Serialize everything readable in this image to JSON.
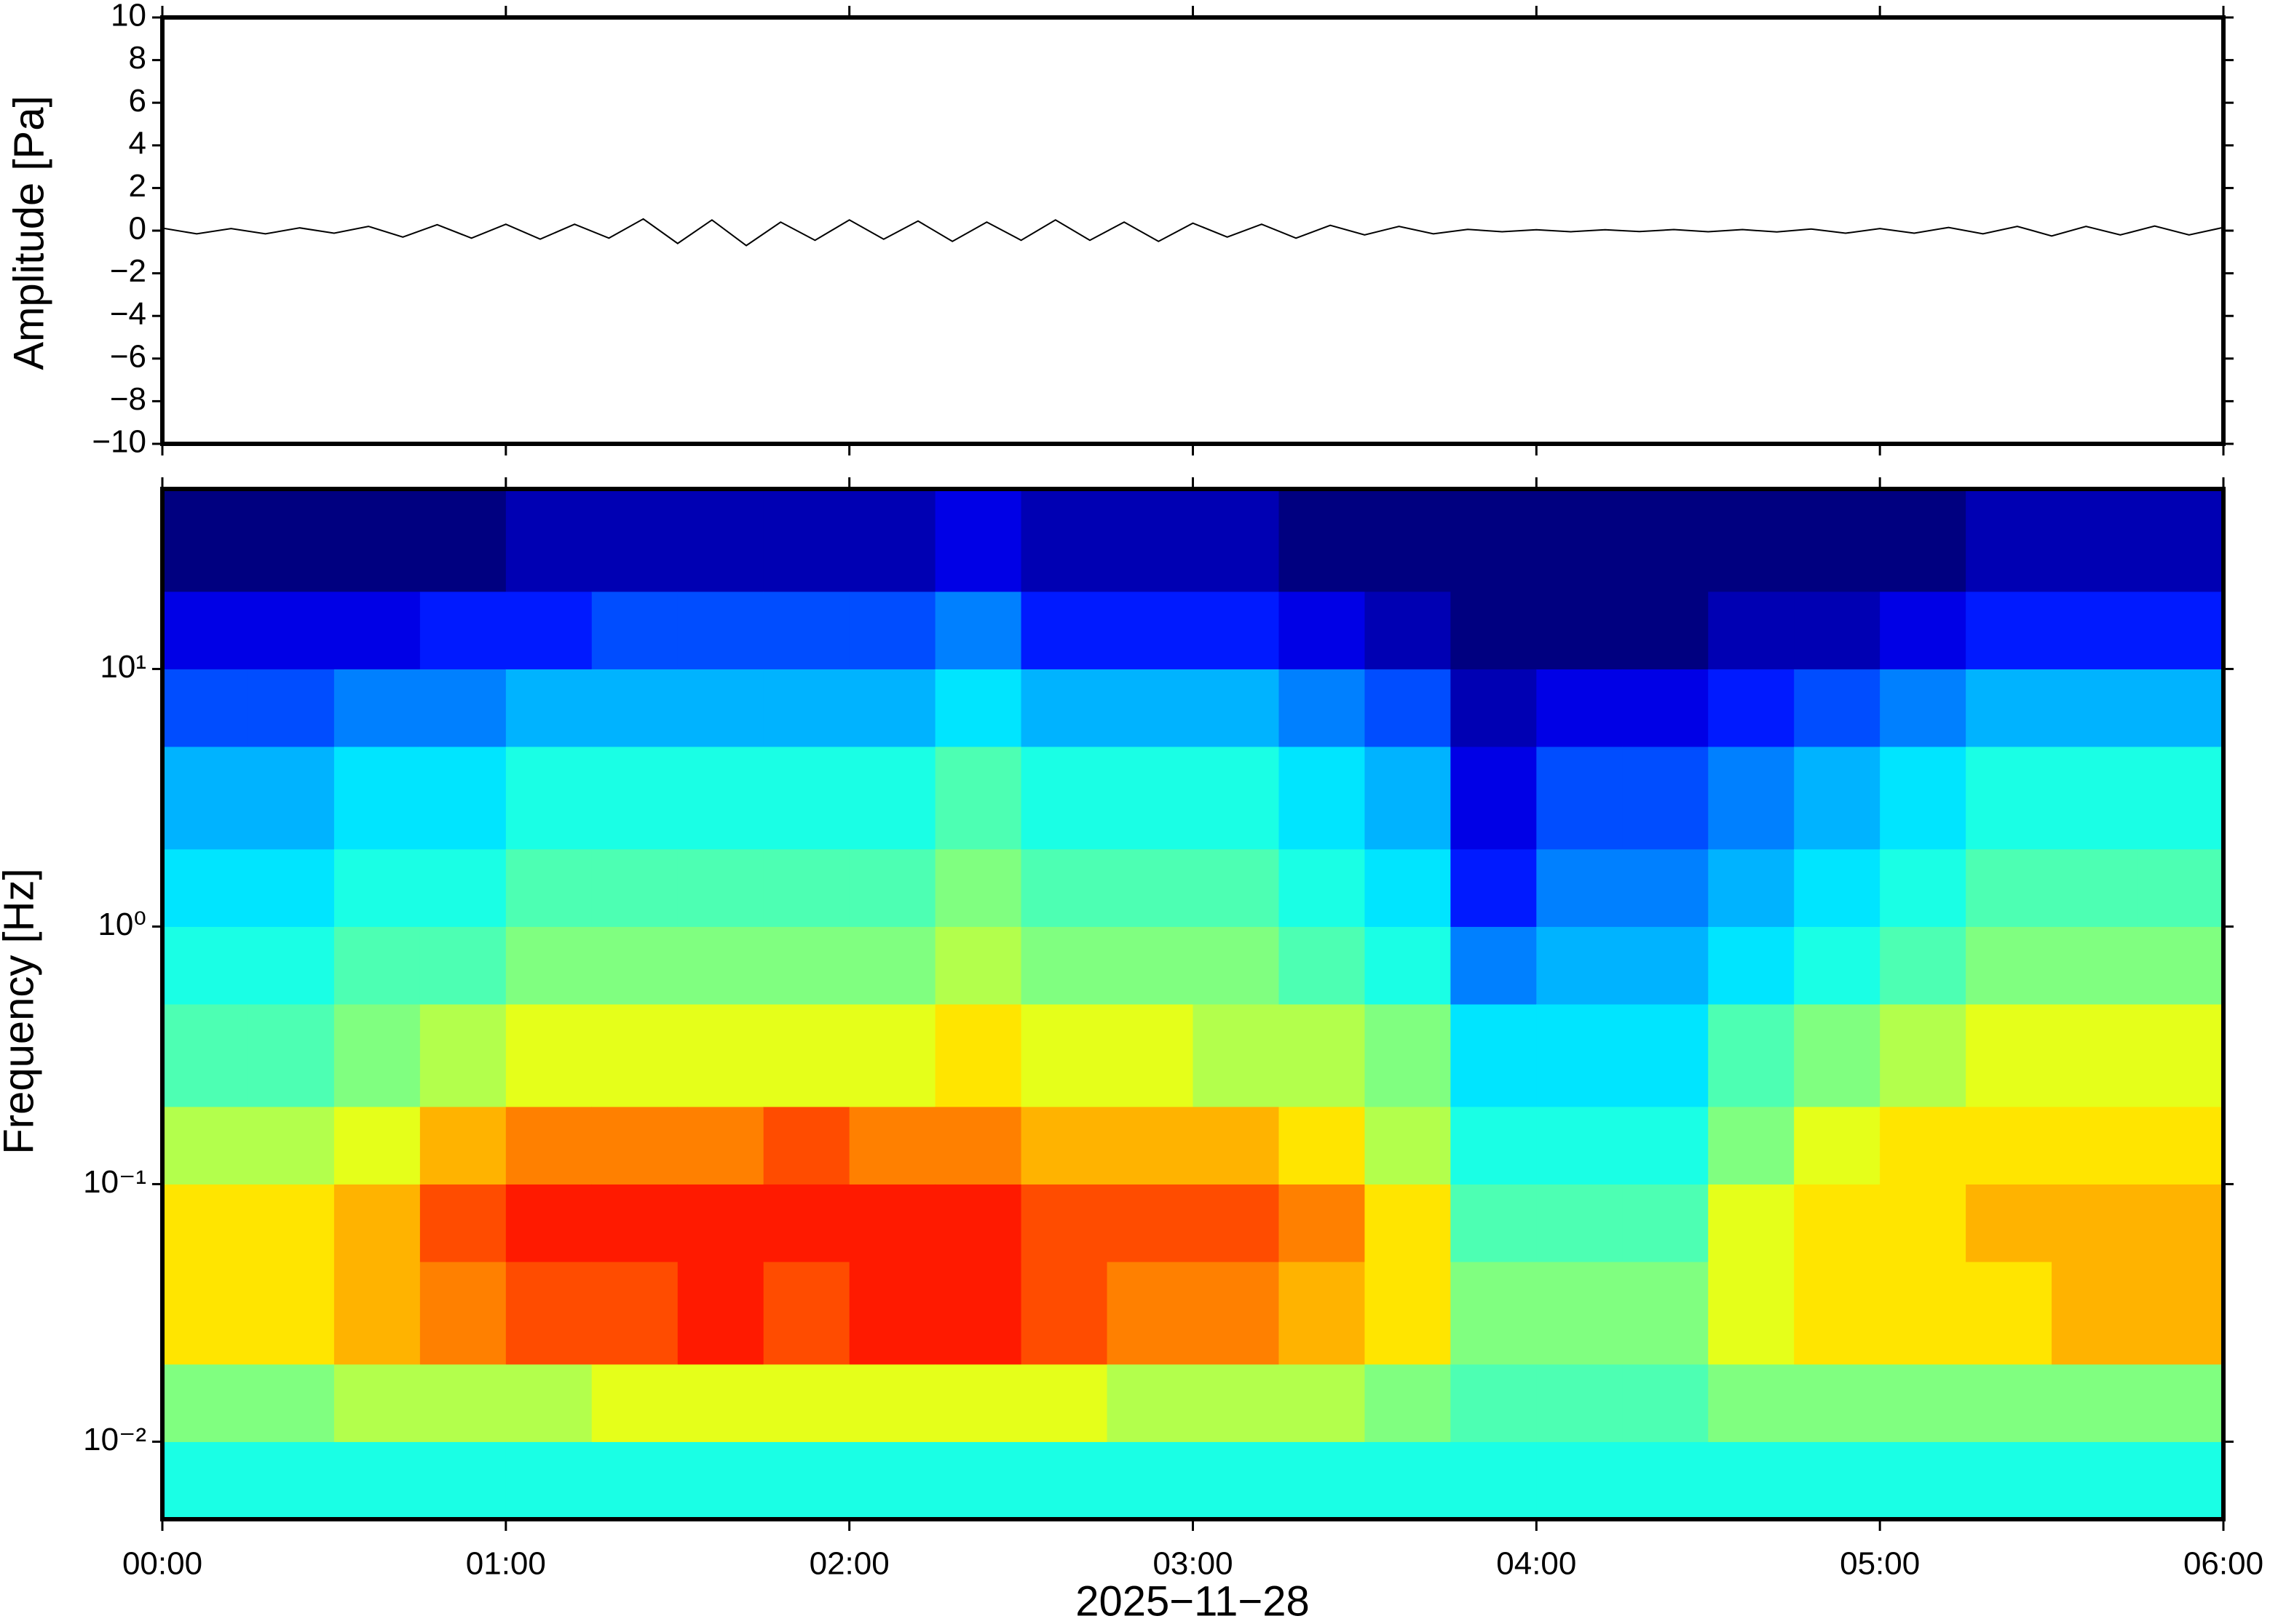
{
  "chart_data": [
    {
      "type": "line",
      "ylabel": "Amplitude [Pa]",
      "color": "#000000",
      "xlim": [
        "00:00",
        "06:00"
      ],
      "ylim": [
        -10,
        10
      ],
      "yticks": [
        {
          "value": -10,
          "label": "−10"
        },
        {
          "value": -8,
          "label": "−8"
        },
        {
          "value": -6,
          "label": "−6"
        },
        {
          "value": -4,
          "label": "−4"
        },
        {
          "value": -2,
          "label": "−2"
        },
        0,
        2,
        4,
        6,
        8,
        10
      ],
      "x": [
        "00:00",
        "00:06",
        "00:12",
        "00:18",
        "00:24",
        "00:30",
        "00:36",
        "00:42",
        "00:48",
        "00:54",
        "01:00",
        "01:06",
        "01:12",
        "01:18",
        "01:24",
        "01:30",
        "01:36",
        "01:42",
        "01:48",
        "01:54",
        "02:00",
        "02:06",
        "02:12",
        "02:18",
        "02:24",
        "02:30",
        "02:36",
        "02:42",
        "02:48",
        "02:54",
        "03:00",
        "03:06",
        "03:12",
        "03:18",
        "03:24",
        "03:30",
        "03:36",
        "03:42",
        "03:48",
        "03:54",
        "04:00",
        "04:06",
        "04:12",
        "04:18",
        "04:24",
        "04:30",
        "04:36",
        "04:42",
        "04:48",
        "04:54",
        "05:00",
        "05:06",
        "05:12",
        "05:18",
        "05:24",
        "05:30",
        "05:36",
        "05:42",
        "05:48",
        "05:54",
        "06:00"
      ],
      "values": [
        0.12,
        -0.15,
        0.1,
        -0.15,
        0.13,
        -0.12,
        0.2,
        -0.3,
        0.28,
        -0.35,
        0.3,
        -0.4,
        0.3,
        -0.35,
        0.55,
        -0.6,
        0.5,
        -0.7,
        0.4,
        -0.45,
        0.5,
        -0.4,
        0.45,
        -0.5,
        0.4,
        -0.45,
        0.5,
        -0.45,
        0.4,
        -0.5,
        0.35,
        -0.3,
        0.3,
        -0.35,
        0.25,
        -0.2,
        0.2,
        -0.15,
        0.06,
        -0.05,
        0.04,
        -0.05,
        0.04,
        -0.04,
        0.05,
        -0.05,
        0.05,
        -0.06,
        0.08,
        -0.12,
        0.1,
        -0.12,
        0.15,
        -0.15,
        0.2,
        -0.25,
        0.2,
        -0.2,
        0.22,
        -0.2,
        0.15
      ]
    },
    {
      "type": "heatmap",
      "xlabel": "2025−11−28",
      "ylabel": "Frequency [Hz]",
      "colormap": "jet",
      "clim": [
        0,
        10
      ],
      "ylog": true,
      "xlim": [
        "00:00",
        "06:00"
      ],
      "ylim": [
        0.005,
        50
      ],
      "xticks": [
        "00:00",
        "01:00",
        "02:00",
        "03:00",
        "04:00",
        "05:00",
        "06:00"
      ],
      "yticks": [
        {
          "value": 0.01,
          "label": "10⁻²"
        },
        {
          "value": 0.1,
          "label": "10⁻¹"
        },
        {
          "value": 1,
          "label": "10⁰"
        },
        {
          "value": 10,
          "label": "10¹"
        }
      ],
      "xbins": [
        "00:00",
        "00:15",
        "00:30",
        "00:45",
        "01:00",
        "01:15",
        "01:30",
        "01:45",
        "02:00",
        "02:15",
        "02:30",
        "02:45",
        "03:00",
        "03:15",
        "03:30",
        "03:45",
        "04:00",
        "04:15",
        "04:30",
        "04:45",
        "05:00",
        "05:15",
        "05:30",
        "05:45",
        "06:00"
      ],
      "ybins": [
        0.005,
        0.01,
        0.02,
        0.05,
        0.1,
        0.2,
        0.5,
        1,
        2,
        5,
        10,
        20,
        50
      ],
      "values": [
        [
          4,
          5,
          6.5,
          6.5,
          5.5,
          4.5,
          4,
          3.5,
          3,
          2,
          1,
          0
        ],
        [
          4,
          5,
          6.5,
          6.5,
          5.5,
          4.5,
          4,
          3.5,
          3,
          2,
          1,
          0
        ],
        [
          4,
          5.5,
          7,
          7,
          6,
          5,
          4.5,
          4,
          3.5,
          2.5,
          1,
          0
        ],
        [
          4,
          5.5,
          7.5,
          8,
          7,
          5.5,
          4.5,
          4,
          3.5,
          2.5,
          1.5,
          0
        ],
        [
          4,
          5.5,
          8,
          8.5,
          7.5,
          6,
          5,
          4.5,
          4,
          3,
          1.5,
          0.5
        ],
        [
          4,
          6,
          8,
          8.5,
          7.5,
          6,
          5,
          4.5,
          4,
          3,
          2,
          0.5
        ],
        [
          4,
          6,
          8.5,
          8.5,
          7.5,
          6,
          5,
          4.5,
          4,
          3,
          2,
          0.5
        ],
        [
          4,
          6,
          8,
          8.5,
          8,
          6,
          5,
          4.5,
          4,
          3,
          2,
          0.5
        ],
        [
          4,
          6,
          8.5,
          8.5,
          7.5,
          6,
          5,
          4.5,
          4,
          3,
          2,
          0.5
        ],
        [
          4,
          6,
          8.5,
          8.5,
          7.5,
          6.5,
          5.5,
          5,
          4.5,
          3.5,
          2.5,
          1
        ],
        [
          4,
          6,
          8,
          8,
          7,
          6,
          5,
          4.5,
          4,
          3,
          1.5,
          0.5
        ],
        [
          4,
          5.5,
          7.5,
          8,
          7,
          6,
          5,
          4.5,
          4,
          3,
          1.5,
          0.5
        ],
        [
          4,
          5.5,
          7.5,
          8,
          7,
          5.5,
          5,
          4.5,
          4,
          3,
          1.5,
          0.5
        ],
        [
          4,
          5.5,
          7,
          7.5,
          6.5,
          5.5,
          4.5,
          4,
          3.5,
          2.5,
          1,
          0
        ],
        [
          4,
          5,
          6.5,
          6.5,
          5.5,
          5,
          4,
          3.5,
          3,
          2,
          0.5,
          0
        ],
        [
          4,
          4.5,
          5,
          4.5,
          4,
          3.5,
          2.5,
          1.5,
          1,
          0.5,
          0,
          0
        ],
        [
          4,
          4.5,
          5,
          4.5,
          4,
          3.5,
          3,
          2.5,
          2,
          1,
          0,
          0
        ],
        [
          4,
          4.5,
          5,
          4.5,
          4,
          3.5,
          3,
          2.5,
          2,
          1,
          0,
          0
        ],
        [
          4,
          5,
          6,
          6,
          5,
          4.5,
          3.5,
          3,
          2.5,
          1.5,
          0.5,
          0
        ],
        [
          4,
          5,
          6.5,
          6.5,
          6,
          5,
          4,
          3.5,
          3,
          2,
          0.5,
          0
        ],
        [
          4,
          5,
          6.5,
          6.5,
          6.5,
          5.5,
          4.5,
          4,
          3.5,
          2.5,
          1,
          0
        ],
        [
          4,
          5,
          6.5,
          7,
          6.5,
          6,
          5,
          4.5,
          4,
          3,
          1.5,
          0.5
        ],
        [
          4,
          5,
          7,
          7,
          6.5,
          6,
          5,
          4.5,
          4,
          3,
          1.5,
          0.5
        ],
        [
          4,
          5,
          7,
          7,
          6.5,
          6,
          5,
          4.5,
          4,
          3,
          1.5,
          0.5
        ]
      ]
    }
  ]
}
